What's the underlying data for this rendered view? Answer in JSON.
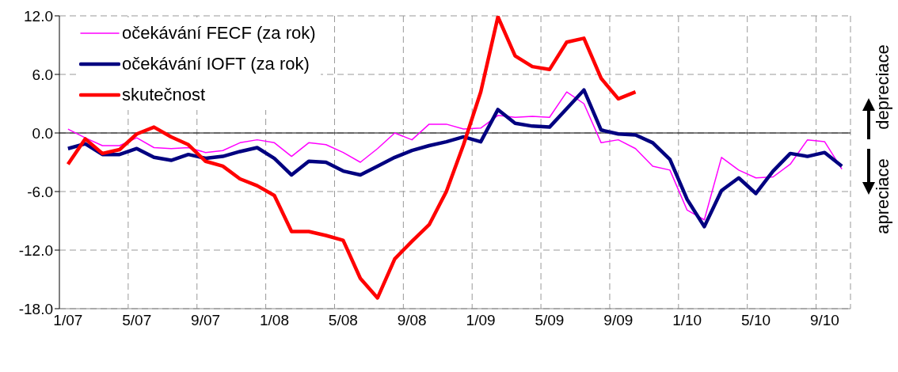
{
  "chart_data": {
    "type": "line",
    "categories": [
      "1/07",
      null,
      null,
      null,
      "5/07",
      null,
      null,
      null,
      "9/07",
      null,
      null,
      null,
      "1/08",
      null,
      null,
      null,
      "5/08",
      null,
      null,
      null,
      "9/08",
      null,
      null,
      null,
      "1/09",
      null,
      null,
      null,
      "5/09",
      null,
      null,
      null,
      "9/09",
      null,
      null,
      null,
      "1/10",
      null,
      null,
      null,
      "5/10",
      null,
      null,
      null,
      "9/10",
      null
    ],
    "series": [
      {
        "name": "očekávání FECF (za rok)",
        "color": "#ff00ff",
        "values": [
          0.4,
          -0.5,
          -1.3,
          -1.3,
          -0.5,
          -1.5,
          -1.6,
          -1.5,
          -2.0,
          -1.8,
          -1.0,
          -0.7,
          -1.0,
          -2.4,
          -1.0,
          -1.2,
          -2.0,
          -3.0,
          -1.6,
          0.0,
          -0.7,
          0.9,
          0.9,
          0.4,
          0.5,
          1.8,
          1.6,
          1.7,
          1.6,
          4.2,
          3.0,
          -1.0,
          -0.7,
          -1.6,
          -3.4,
          -3.8,
          -7.9,
          -8.9,
          -2.5,
          -3.8,
          -4.6,
          -4.5,
          -3.2,
          -0.7,
          -0.9,
          -3.7
        ]
      },
      {
        "name": "očekávání IOFT (za rok)",
        "color": "#000080",
        "values": [
          -1.6,
          -1.1,
          -2.2,
          -2.2,
          -1.6,
          -2.5,
          -2.8,
          -2.2,
          -2.6,
          -2.4,
          -1.9,
          -1.5,
          -2.6,
          -4.3,
          -2.9,
          -3.0,
          -3.9,
          -4.3,
          -3.4,
          -2.5,
          -1.8,
          -1.3,
          -0.9,
          -0.4,
          -0.9,
          2.4,
          1.0,
          0.7,
          0.6,
          2.5,
          4.4,
          0.3,
          -0.1,
          -0.2,
          -1.0,
          -2.7,
          -6.8,
          -9.6,
          -5.9,
          -4.6,
          -6.2,
          -3.9,
          -2.1,
          -2.4,
          -2.0,
          -3.4
        ]
      },
      {
        "name": "skutečnost",
        "color": "#ff0000",
        "values": [
          -3.2,
          -0.6,
          -2.1,
          -1.7,
          -0.1,
          0.6,
          -0.4,
          -1.2,
          -2.9,
          -3.4,
          -4.7,
          -5.4,
          -6.4,
          -10.1,
          -10.1,
          -10.5,
          -11.0,
          -14.9,
          -16.9,
          -12.9,
          -11.1,
          -9.4,
          -6.0,
          -1.2,
          4.2,
          11.9,
          7.9,
          6.8,
          6.5,
          9.3,
          9.7,
          5.6,
          3.5,
          4.2,
          null,
          null,
          null,
          null,
          null,
          null,
          null,
          null,
          null,
          null,
          null,
          null
        ]
      }
    ],
    "ylim": [
      -18,
      12
    ],
    "yticks": [
      {
        "value": -18,
        "label": "-18.0"
      },
      {
        "value": -12,
        "label": "-12.0"
      },
      {
        "value": -6,
        "label": "-6.0"
      },
      {
        "value": 0,
        "label": "0.0"
      },
      {
        "value": 6,
        "label": "6.0"
      },
      {
        "value": 12,
        "label": "12.0"
      }
    ],
    "ref_lines": [
      {
        "axis": "y",
        "value": 0,
        "color": "#000000"
      }
    ],
    "annotations": [
      "depreciace",
      "apreciace"
    ],
    "grid": true,
    "legend": "top left",
    "marker": "none",
    "line_style": "solid"
  }
}
